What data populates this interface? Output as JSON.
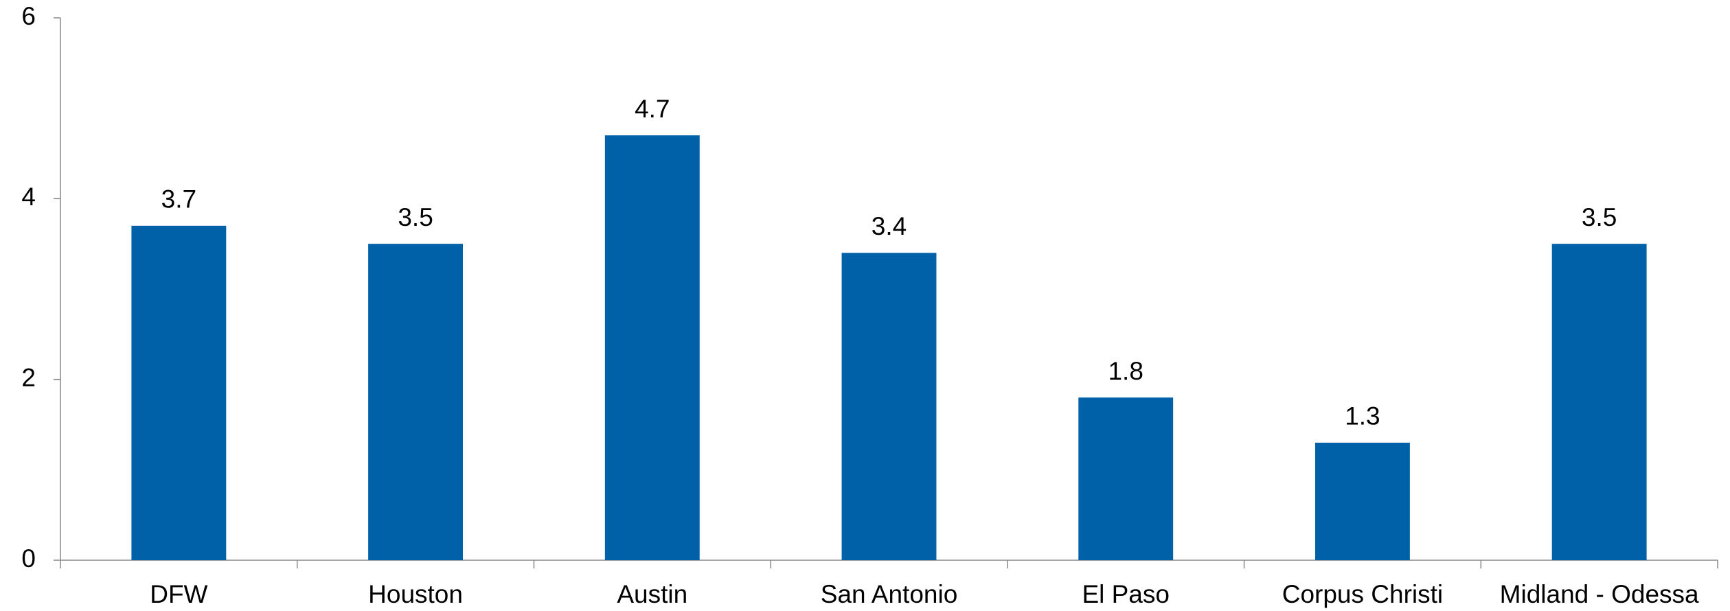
{
  "chart_data": {
    "type": "bar",
    "categories": [
      "DFW",
      "Houston",
      "Austin",
      "San Antonio",
      "El Paso",
      "Corpus Christi",
      "Midland - Odessa"
    ],
    "values": [
      3.7,
      3.5,
      4.7,
      3.4,
      1.8,
      1.3,
      3.5
    ],
    "color": "#0060a8",
    "ylim": [
      0,
      6
    ],
    "yticks": [
      0,
      2,
      4,
      6
    ],
    "grid": false
  }
}
